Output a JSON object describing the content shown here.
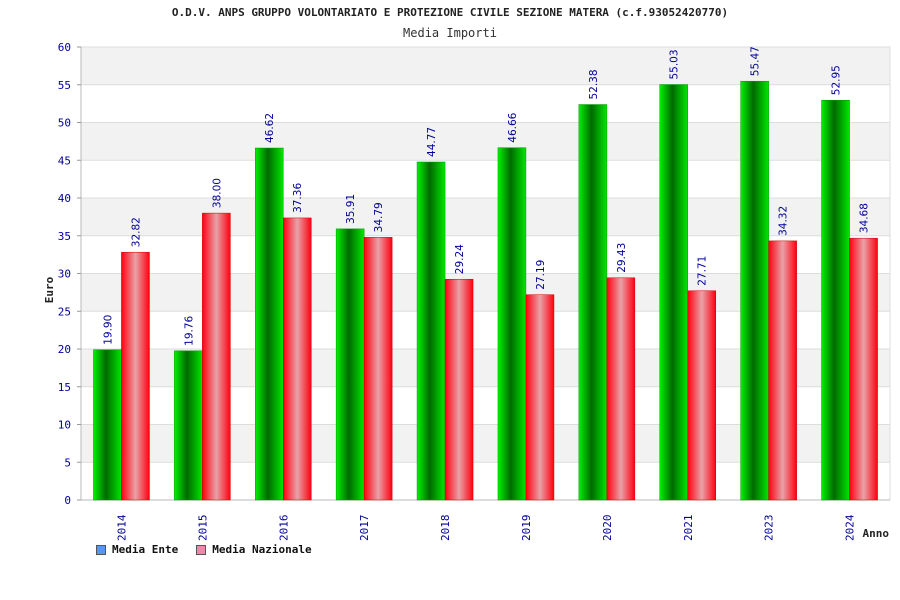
{
  "title": "O.D.V. ANPS GRUPPO VOLONTARIATO E PROTEZIONE CIVILE SEZIONE MATERA (c.f.93052420770)",
  "subtitle": "Media Importi",
  "colors": {
    "series_ente": "#00b800",
    "series_nazionale": "#ee0000",
    "legend_ente": "#5599ee",
    "legend_nazionale": "#ee88aa",
    "axis_text": "#000099",
    "band": "#f2f2f2"
  },
  "chart_data": {
    "type": "bar",
    "title": "O.D.V. ANPS GRUPPO VOLONTARIATO E PROTEZIONE CIVILE SEZIONE MATERA (c.f.93052420770)",
    "subtitle": "Media Importi",
    "xlabel": "Anno",
    "ylabel": "Euro",
    "ylim": [
      0,
      60
    ],
    "yticks": [
      0,
      5,
      10,
      15,
      20,
      25,
      30,
      35,
      40,
      45,
      50,
      55,
      60
    ],
    "grid": true,
    "legend_position": "bottom-left",
    "categories": [
      "2014",
      "2015",
      "2016",
      "2017",
      "2018",
      "2019",
      "2020",
      "2021",
      "2023",
      "2024"
    ],
    "series": [
      {
        "name": "Media Ente",
        "values": [
          19.9,
          19.76,
          46.62,
          35.91,
          44.77,
          46.66,
          52.38,
          55.03,
          55.47,
          52.95
        ],
        "labels": [
          "19.90",
          "19.76",
          "46.62",
          "35.91",
          "44.77",
          "46.66",
          "52.38",
          "55.03",
          "55.47",
          "52.95"
        ]
      },
      {
        "name": "Media Nazionale",
        "values": [
          32.82,
          38.0,
          37.36,
          34.79,
          29.24,
          27.19,
          29.43,
          27.71,
          34.32,
          34.68
        ],
        "labels": [
          "32.82",
          "38.00",
          "37.36",
          "34.79",
          "29.24",
          "27.19",
          "29.43",
          "27.71",
          "34.32",
          "34.68"
        ]
      }
    ]
  }
}
